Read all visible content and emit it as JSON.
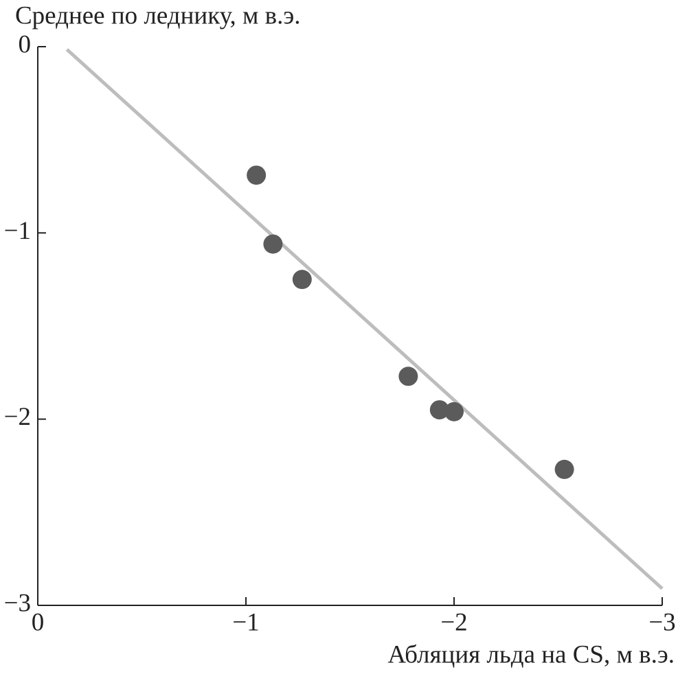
{
  "chart_data": {
    "type": "scatter",
    "ylabel": "Среднее по леднику, м в.э.",
    "xlabel": "Абляция льда на CS, м в.э.",
    "x": [
      -1.05,
      -1.13,
      -1.27,
      -1.78,
      -1.93,
      -2.0,
      -2.53
    ],
    "values": [
      -0.69,
      -1.06,
      -1.25,
      -1.77,
      -1.95,
      -1.96,
      -2.27
    ],
    "color": "#5b5b5b",
    "fit_line": {
      "x": [
        -0.14,
        -3
      ],
      "values": [
        -0.015,
        -2.91
      ],
      "color": "#bdbdbd"
    },
    "xlim": [
      0,
      -3
    ],
    "ylim": [
      -3,
      0
    ],
    "xticks": [
      0,
      {
        "value": -1,
        "label": "−1"
      },
      {
        "value": -2,
        "label": "−2"
      },
      {
        "value": -3,
        "label": "−3"
      }
    ],
    "yticks": [
      0,
      {
        "value": -1,
        "label": "−1"
      },
      {
        "value": -2,
        "label": "−2"
      },
      {
        "value": -3,
        "label": "−3"
      }
    ]
  }
}
